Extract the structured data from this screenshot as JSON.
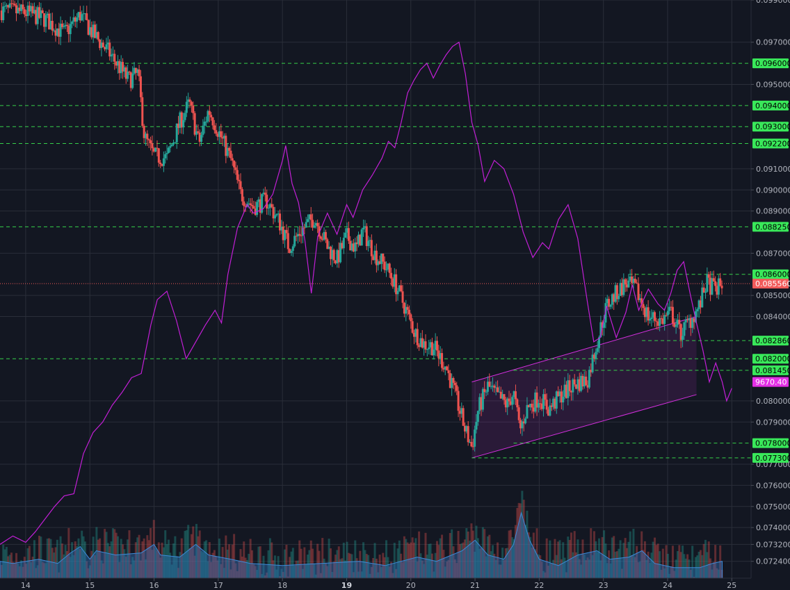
{
  "chart_data": {
    "type": "candlestick",
    "colors": {
      "background": "#131722",
      "grid": "#2a2e39",
      "up": "#26a69a",
      "down": "#ef5350",
      "overlay_line": "#c21fd6",
      "channel": "#d62fe0",
      "level_line": "#36d04a",
      "level_tag": "#39e85a",
      "price_tag": "#f15a5a",
      "overlay_tag": "#e42fe6",
      "volume_area": "#2f6fb5"
    },
    "y_axis": {
      "range": [
        0.0716,
        0.099
      ],
      "ticks": [
        "0.099000",
        "0.097000",
        "0.095000",
        "0.091000",
        "0.090000",
        "0.089000",
        "0.087000",
        "0.085000",
        "0.084000",
        "0.080000",
        "0.079000",
        "0.077000",
        "0.076000",
        "0.075000",
        "0.074000",
        "0.073200",
        "0.072400"
      ]
    },
    "x_axis": {
      "range": [
        13.6,
        25.3
      ],
      "ticks": [
        {
          "label": "14",
          "value": 14
        },
        {
          "label": "15",
          "value": 15
        },
        {
          "label": "16",
          "value": 16
        },
        {
          "label": "17",
          "value": 17
        },
        {
          "label": "18",
          "value": 18
        },
        {
          "label": "19",
          "value": 19,
          "bold": true
        },
        {
          "label": "20",
          "value": 20
        },
        {
          "label": "21",
          "value": 21
        },
        {
          "label": "22",
          "value": 22
        },
        {
          "label": "23",
          "value": 23
        },
        {
          "label": "24",
          "value": 24
        },
        {
          "label": "25",
          "value": 25
        }
      ]
    },
    "levels": [
      {
        "price": 0.096,
        "label": "0.096000",
        "start": 13.6
      },
      {
        "price": 0.094,
        "label": "0.094000",
        "start": 13.6
      },
      {
        "price": 0.093,
        "label": "0.093000",
        "start": 13.6
      },
      {
        "price": 0.0922,
        "label": "0.092200",
        "start": 13.6
      },
      {
        "price": 0.08825,
        "label": "0.088250",
        "start": 13.6
      },
      {
        "price": 0.086,
        "label": "0.086000",
        "start": 23.4
      },
      {
        "price": 0.08286,
        "label": "0.082860",
        "start": 23.6
      },
      {
        "price": 0.082,
        "label": "0.082000",
        "start": 13.6
      },
      {
        "price": 0.08145,
        "label": "0.081450",
        "start": 21.6
      },
      {
        "price": 0.078,
        "label": "0.078000",
        "start": 21.6
      },
      {
        "price": 0.0773,
        "label": "0.077300",
        "start": 20.95
      }
    ],
    "last_price": {
      "price": 0.08556,
      "label": "0.085560"
    },
    "overlay_tag": {
      "price": 0.0809,
      "label": "9670.40"
    },
    "channel": {
      "upper": [
        [
          20.95,
          0.0809
        ],
        [
          24.45,
          0.084
        ]
      ],
      "lower": [
        [
          20.95,
          0.0773
        ],
        [
          24.45,
          0.0803
        ]
      ]
    },
    "anchors": [
      [
        13.6,
        0.0985
      ],
      [
        14.0,
        0.0984
      ],
      [
        14.3,
        0.0981
      ],
      [
        14.6,
        0.0974
      ],
      [
        14.85,
        0.0983
      ],
      [
        15.05,
        0.0974
      ],
      [
        15.3,
        0.0965
      ],
      [
        15.6,
        0.0952
      ],
      [
        15.75,
        0.0955
      ],
      [
        15.85,
        0.0925
      ],
      [
        16.0,
        0.0916
      ],
      [
        16.2,
        0.0915
      ],
      [
        16.4,
        0.0932
      ],
      [
        16.55,
        0.0941
      ],
      [
        16.7,
        0.0922
      ],
      [
        16.85,
        0.0938
      ],
      [
        17.0,
        0.0928
      ],
      [
        17.2,
        0.0914
      ],
      [
        17.35,
        0.0898
      ],
      [
        17.55,
        0.0892
      ],
      [
        17.75,
        0.0895
      ],
      [
        17.95,
        0.0885
      ],
      [
        18.1,
        0.0873
      ],
      [
        18.3,
        0.0881
      ],
      [
        18.5,
        0.0887
      ],
      [
        18.7,
        0.0873
      ],
      [
        18.85,
        0.0867
      ],
      [
        19.0,
        0.0878
      ],
      [
        19.15,
        0.0872
      ],
      [
        19.25,
        0.0881
      ],
      [
        19.45,
        0.0869
      ],
      [
        19.6,
        0.0864
      ],
      [
        19.75,
        0.0856
      ],
      [
        19.9,
        0.0845
      ],
      [
        20.05,
        0.0833
      ],
      [
        20.2,
        0.0827
      ],
      [
        20.35,
        0.0826
      ],
      [
        20.55,
        0.0816
      ],
      [
        20.7,
        0.0802
      ],
      [
        20.85,
        0.0786
      ],
      [
        20.95,
        0.0778
      ],
      [
        21.05,
        0.0796
      ],
      [
        21.2,
        0.0807
      ],
      [
        21.35,
        0.0802
      ],
      [
        21.5,
        0.0798
      ],
      [
        21.6,
        0.0804
      ],
      [
        21.7,
        0.0786
      ],
      [
        21.8,
        0.0796
      ],
      [
        22.0,
        0.0802
      ],
      [
        22.15,
        0.0796
      ],
      [
        22.35,
        0.0803
      ],
      [
        22.55,
        0.0808
      ],
      [
        22.75,
        0.081
      ],
      [
        22.9,
        0.0828
      ],
      [
        23.05,
        0.0845
      ],
      [
        23.2,
        0.0851
      ],
      [
        23.35,
        0.0856
      ],
      [
        23.5,
        0.0853
      ],
      [
        23.7,
        0.084
      ],
      [
        23.9,
        0.0838
      ],
      [
        24.05,
        0.0842
      ],
      [
        24.2,
        0.0832
      ],
      [
        24.35,
        0.0838
      ],
      [
        24.5,
        0.0845
      ],
      [
        24.6,
        0.0856
      ],
      [
        24.75,
        0.0853
      ],
      [
        24.85,
        0.0855
      ]
    ],
    "overlay_line": [
      [
        13.6,
        0.0732
      ],
      [
        13.8,
        0.0736
      ],
      [
        14.0,
        0.0733
      ],
      [
        14.15,
        0.0738
      ],
      [
        14.3,
        0.0744
      ],
      [
        14.45,
        0.075
      ],
      [
        14.6,
        0.0755
      ],
      [
        14.75,
        0.0756
      ],
      [
        14.9,
        0.0775
      ],
      [
        15.05,
        0.0785
      ],
      [
        15.2,
        0.079
      ],
      [
        15.35,
        0.0798
      ],
      [
        15.5,
        0.0804
      ],
      [
        15.65,
        0.0811
      ],
      [
        15.8,
        0.0813
      ],
      [
        15.95,
        0.0836
      ],
      [
        16.05,
        0.0848
      ],
      [
        16.2,
        0.0852
      ],
      [
        16.35,
        0.0838
      ],
      [
        16.5,
        0.082
      ],
      [
        16.65,
        0.0828
      ],
      [
        16.8,
        0.0836
      ],
      [
        16.95,
        0.0843
      ],
      [
        17.05,
        0.0837
      ],
      [
        17.15,
        0.086
      ],
      [
        17.3,
        0.0882
      ],
      [
        17.45,
        0.0893
      ],
      [
        17.55,
        0.0889
      ],
      [
        17.7,
        0.0891
      ],
      [
        17.85,
        0.0898
      ],
      [
        18.0,
        0.0914
      ],
      [
        18.05,
        0.0921
      ],
      [
        18.15,
        0.0903
      ],
      [
        18.25,
        0.0894
      ],
      [
        18.35,
        0.0876
      ],
      [
        18.45,
        0.0851
      ],
      [
        18.55,
        0.0878
      ],
      [
        18.7,
        0.0889
      ],
      [
        18.85,
        0.0879
      ],
      [
        19.0,
        0.0893
      ],
      [
        19.1,
        0.0887
      ],
      [
        19.25,
        0.09
      ],
      [
        19.4,
        0.0907
      ],
      [
        19.55,
        0.0915
      ],
      [
        19.65,
        0.0923
      ],
      [
        19.75,
        0.092
      ],
      [
        19.85,
        0.0932
      ],
      [
        19.95,
        0.0946
      ],
      [
        20.05,
        0.0952
      ],
      [
        20.15,
        0.0957
      ],
      [
        20.25,
        0.096
      ],
      [
        20.35,
        0.0953
      ],
      [
        20.45,
        0.0959
      ],
      [
        20.55,
        0.0964
      ],
      [
        20.65,
        0.0968
      ],
      [
        20.75,
        0.097
      ],
      [
        20.85,
        0.0955
      ],
      [
        20.95,
        0.0932
      ],
      [
        21.05,
        0.0921
      ],
      [
        21.15,
        0.0904
      ],
      [
        21.3,
        0.0914
      ],
      [
        21.45,
        0.091
      ],
      [
        21.6,
        0.0898
      ],
      [
        21.75,
        0.088
      ],
      [
        21.9,
        0.0868
      ],
      [
        22.05,
        0.0875
      ],
      [
        22.15,
        0.0872
      ],
      [
        22.3,
        0.0886
      ],
      [
        22.45,
        0.0893
      ],
      [
        22.6,
        0.0877
      ],
      [
        22.75,
        0.0847
      ],
      [
        22.85,
        0.0828
      ],
      [
        22.95,
        0.083
      ],
      [
        23.05,
        0.0845
      ],
      [
        23.2,
        0.083
      ],
      [
        23.35,
        0.0842
      ],
      [
        23.45,
        0.0855
      ],
      [
        23.55,
        0.0843
      ],
      [
        23.7,
        0.0853
      ],
      [
        23.85,
        0.0846
      ],
      [
        23.95,
        0.0843
      ],
      [
        24.05,
        0.0851
      ],
      [
        24.15,
        0.0862
      ],
      [
        24.25,
        0.0866
      ],
      [
        24.35,
        0.0851
      ],
      [
        24.45,
        0.0837
      ],
      [
        24.55,
        0.0824
      ],
      [
        24.65,
        0.0809
      ],
      [
        24.75,
        0.0818
      ],
      [
        24.85,
        0.0809
      ],
      [
        24.92,
        0.08
      ],
      [
        25.0,
        0.0806
      ]
    ],
    "volume_profile": [
      [
        13.6,
        0.0724
      ],
      [
        13.8,
        0.0723
      ],
      [
        14.2,
        0.0725
      ],
      [
        14.5,
        0.0723
      ],
      [
        14.7,
        0.0728
      ],
      [
        14.85,
        0.0731
      ],
      [
        15.0,
        0.0725
      ],
      [
        15.1,
        0.0729
      ],
      [
        15.4,
        0.0727
      ],
      [
        15.8,
        0.0728
      ],
      [
        16.0,
        0.0732
      ],
      [
        16.1,
        0.0727
      ],
      [
        16.4,
        0.0726
      ],
      [
        16.65,
        0.0732
      ],
      [
        16.85,
        0.0727
      ],
      [
        17.2,
        0.0725
      ],
      [
        17.5,
        0.0723
      ],
      [
        18.0,
        0.0722
      ],
      [
        18.6,
        0.0723
      ],
      [
        19.2,
        0.0724
      ],
      [
        19.6,
        0.0722
      ],
      [
        20.1,
        0.0726
      ],
      [
        20.4,
        0.0724
      ],
      [
        20.8,
        0.0729
      ],
      [
        21.0,
        0.0734
      ],
      [
        21.2,
        0.0727
      ],
      [
        21.45,
        0.0725
      ],
      [
        21.6,
        0.0732
      ],
      [
        21.72,
        0.0747
      ],
      [
        21.85,
        0.0734
      ],
      [
        22.0,
        0.0725
      ],
      [
        22.3,
        0.0722
      ],
      [
        22.6,
        0.0727
      ],
      [
        22.9,
        0.0729
      ],
      [
        23.1,
        0.0725
      ],
      [
        23.4,
        0.0726
      ],
      [
        23.6,
        0.0729
      ],
      [
        23.8,
        0.0723
      ],
      [
        24.1,
        0.0721
      ],
      [
        24.5,
        0.0721
      ],
      [
        24.7,
        0.0723
      ],
      [
        24.85,
        0.0724
      ]
    ]
  }
}
